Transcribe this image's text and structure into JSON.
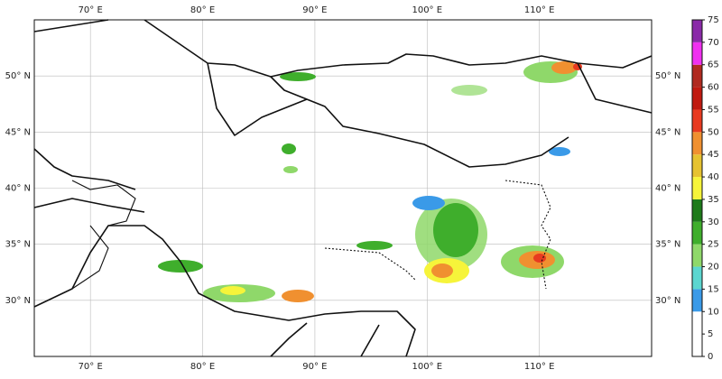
{
  "map": {
    "lon_lim": [
      65,
      120
    ],
    "lat_lim": [
      25,
      55
    ],
    "lon_ticks": [
      {
        "value": 70,
        "label": "70° E"
      },
      {
        "value": 80,
        "label": "80° E"
      },
      {
        "value": 90,
        "label": "90° E"
      },
      {
        "value": 100,
        "label": "100° E"
      },
      {
        "value": 110,
        "label": "110° E"
      }
    ],
    "lat_ticks": [
      {
        "value": 30,
        "label": "30° N"
      },
      {
        "value": 35,
        "label": "35° N"
      },
      {
        "value": 40,
        "label": "40° N"
      },
      {
        "value": 45,
        "label": "45° N"
      },
      {
        "value": 50,
        "label": "50° N"
      }
    ],
    "grid": true
  },
  "colorbar": {
    "lim": [
      0,
      75
    ],
    "ticks": [
      0,
      5,
      10,
      15,
      20,
      25,
      30,
      35,
      40,
      45,
      50,
      55,
      60,
      65,
      70,
      75
    ],
    "colors": [
      "#ffffff",
      "#ffffff",
      "#3a9ae8",
      "#5cd6d0",
      "#8fd86a",
      "#3fae2c",
      "#1e7a1a",
      "#f6f43a",
      "#e6c230",
      "#f09030",
      "#e83a20",
      "#c01a10",
      "#b02a20",
      "#f030f0",
      "#8a2aa8",
      "#9a8ae8"
    ]
  }
}
